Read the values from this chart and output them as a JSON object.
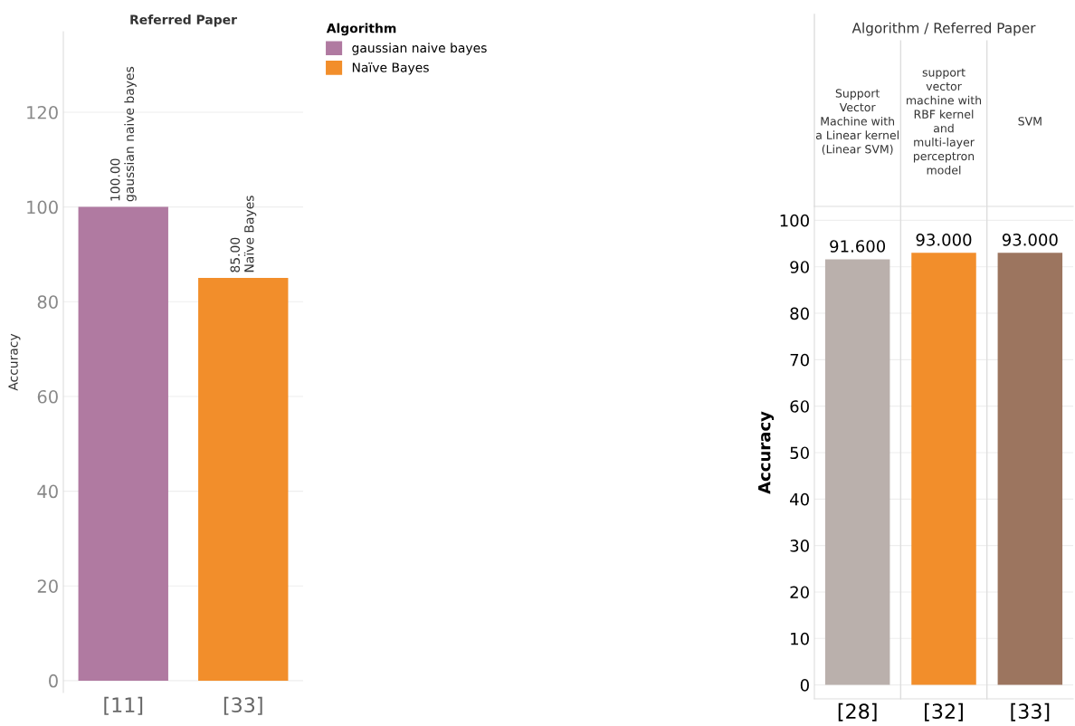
{
  "chart_data": [
    {
      "type": "bar",
      "title": "Referred Paper",
      "ylabel": "Accuracy",
      "legend_title": "Algorithm",
      "legend": "right",
      "grid": "y",
      "categories": [
        "[11]",
        "[33]"
      ],
      "ylim": [
        -2.5,
        137
      ],
      "yticks": [
        0,
        20,
        40,
        60,
        80,
        100,
        120
      ],
      "series": [
        {
          "name": "gaussian naive bayes",
          "color": "#b07aa1",
          "values": [
            100,
            null
          ],
          "value_labels": [
            "100.00",
            null
          ]
        },
        {
          "name": "Naïve Bayes",
          "color": "#f28e2b",
          "values": [
            null,
            85
          ],
          "value_labels": [
            null,
            "85.00"
          ]
        }
      ]
    },
    {
      "type": "bar",
      "title": "Algorithm / Referred Paper",
      "ylabel": "Accuracy",
      "grid": "y",
      "categories": [
        "[28]",
        "[32]",
        "[33]"
      ],
      "ylim": [
        -3,
        103
      ],
      "yticks": [
        0,
        10,
        20,
        30,
        40,
        50,
        60,
        70,
        80,
        90,
        100
      ],
      "annotations": [
        "Support\nVector\nMachine with\na Linear kernel\n(Linear SVM)",
        "support\nvector\nmachine with\nRBF kernel\nand\nmulti-layer\nperceptron\nmodel",
        "SVM"
      ],
      "series": [
        {
          "colors": [
            "#bab0ac",
            "#f28e2b",
            "#9c755f"
          ],
          "values": [
            91.6,
            93,
            93
          ],
          "value_labels": [
            "91.600",
            "93.000",
            "93.000"
          ]
        }
      ]
    }
  ]
}
